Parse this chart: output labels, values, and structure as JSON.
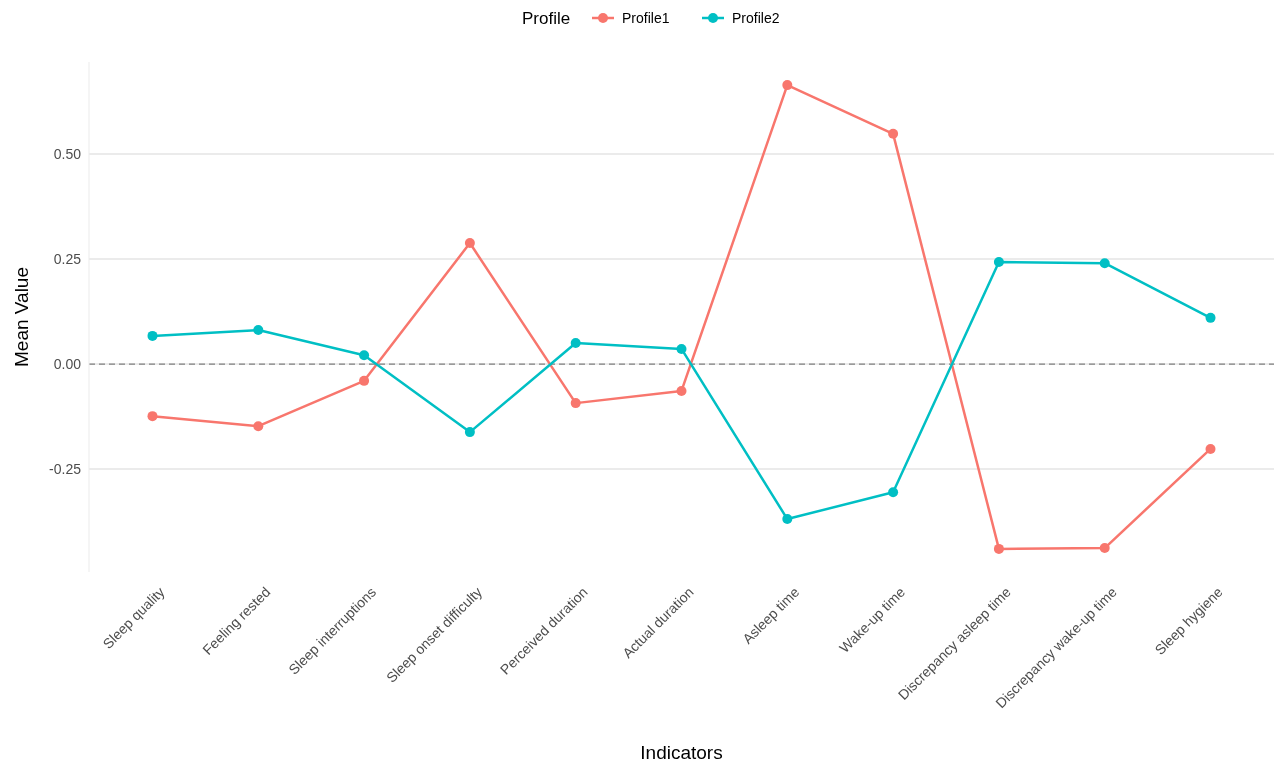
{
  "chart_data": {
    "type": "line",
    "xlabel": "Indicators",
    "ylabel": "Mean Value",
    "legend_title": "Profile",
    "legend": "top",
    "categories": [
      "Sleep quality",
      "Feeling rested",
      "Sleep interruptions",
      "Sleep onset difficulty",
      "Perceived duration",
      "Actual duration",
      "Asleep time",
      "Wake-up time",
      "Discrepancy asleep time",
      "Discrepancy wake-up time",
      "Sleep hygiene"
    ],
    "series": [
      {
        "name": "Profile1",
        "color": "#f8766d",
        "values": [
          -0.124,
          -0.148,
          -0.04,
          0.288,
          -0.093,
          -0.064,
          0.664,
          0.548,
          -0.44,
          -0.438,
          -0.202
        ]
      },
      {
        "name": "Profile2",
        "color": "#00bfc4",
        "values": [
          0.067,
          0.081,
          0.021,
          -0.162,
          0.05,
          0.036,
          -0.369,
          -0.305,
          0.243,
          0.24,
          0.11
        ]
      }
    ],
    "ylim": [
      -0.495,
      0.719
    ],
    "yticks": [
      {
        "value": -0.25,
        "label": "-0.25"
      },
      {
        "value": 0,
        "label": "0.00"
      },
      {
        "value": 0.25,
        "label": "0.25"
      },
      {
        "value": 0.5,
        "label": "0.50"
      }
    ],
    "grid": "y",
    "marker": "circle",
    "line_style": "solid",
    "ref_lines": [
      {
        "axis": "y",
        "value": 0,
        "color": "#808080",
        "line_style": "dashed"
      }
    ]
  }
}
